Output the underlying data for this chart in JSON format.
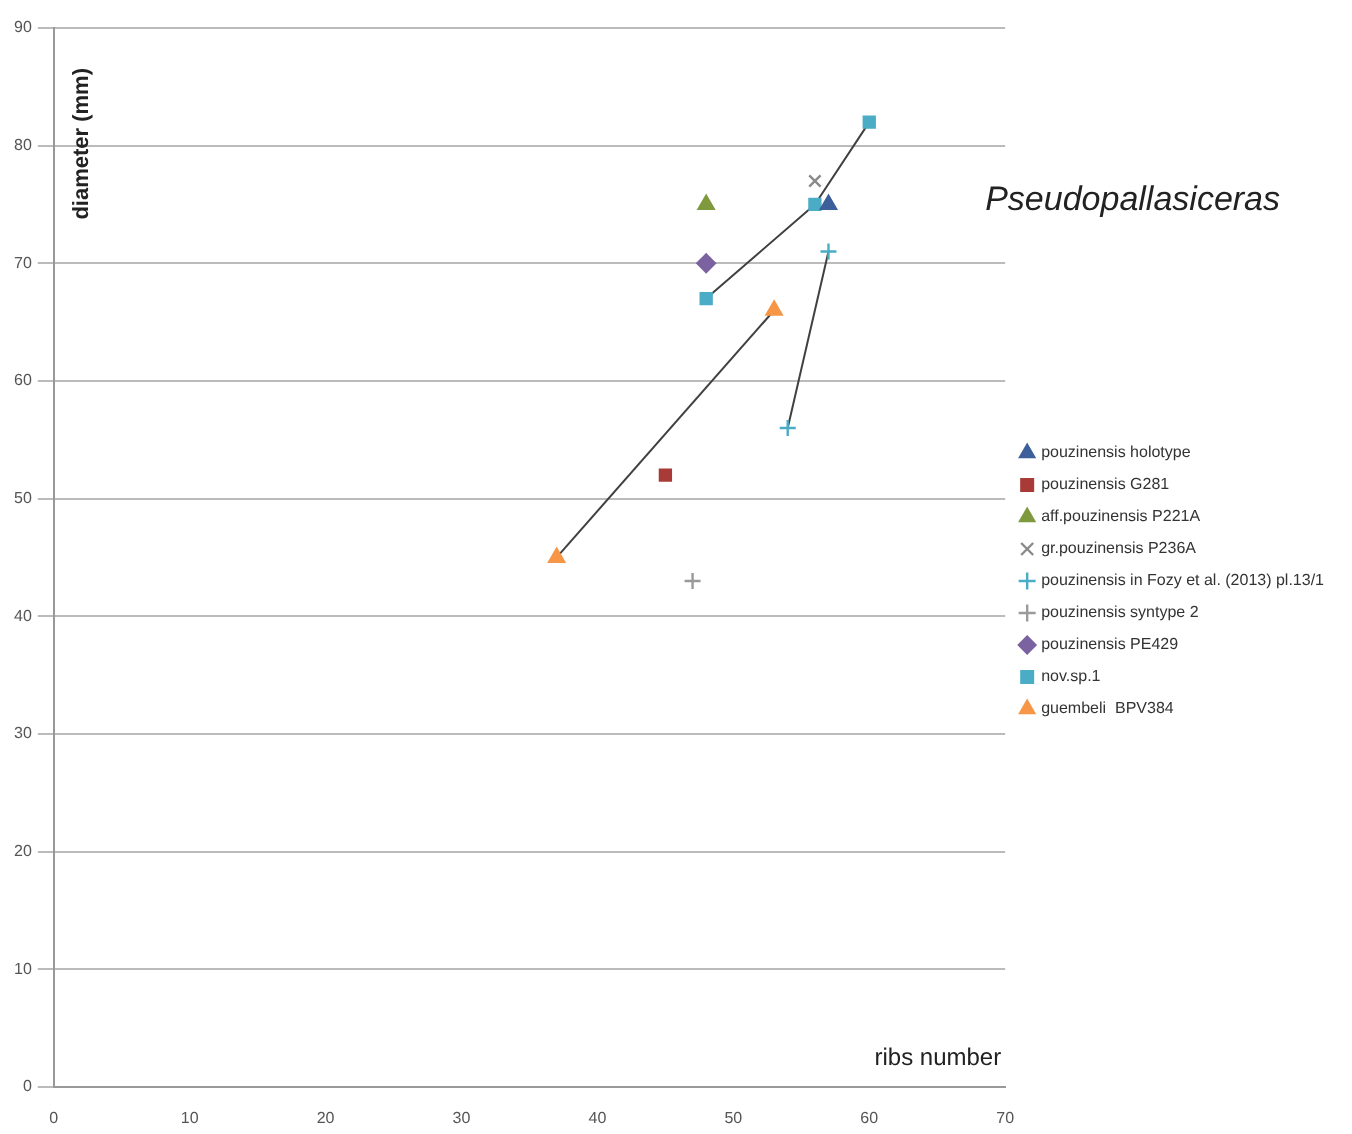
{
  "chart_data": {
    "type": "scatter",
    "title": "Pseudopallasiceras",
    "xlabel": "ribs number",
    "ylabel": "diameter (mm)",
    "xlim": [
      0,
      70
    ],
    "xticks": [
      0,
      10,
      20,
      30,
      40,
      50,
      60,
      70
    ],
    "ylim": [
      0,
      90
    ],
    "yticks": [
      0,
      10,
      20,
      30,
      40,
      50,
      60,
      70,
      80,
      90
    ],
    "grid": "y",
    "legend": "right",
    "series": [
      {
        "name": "pouzinensis holotype",
        "color": "#3d5f9a",
        "marker": "triangle",
        "x": [
          57
        ],
        "values": [
          75
        ]
      },
      {
        "name": "pouzinensis G281",
        "color": "#a83a37",
        "marker": "square",
        "x": [
          45
        ],
        "values": [
          52
        ]
      },
      {
        "name": "aff.pouzinensis P221A",
        "color": "#7f9a3e",
        "marker": "triangle",
        "x": [
          48
        ],
        "values": [
          75
        ]
      },
      {
        "name": "gr.pouzinensis P236A",
        "color": "#8a8a8a",
        "marker": "x",
        "x": [
          56
        ],
        "values": [
          77
        ]
      },
      {
        "name": "pouzinensis in Fozy et al. (2013) pl.13/1",
        "color": "#4bacc6",
        "marker": "cross",
        "type": "line",
        "x": [
          54,
          57
        ],
        "values": [
          56,
          71
        ]
      },
      {
        "name": "pouzinensis syntype 2",
        "color": "#9a9a9a",
        "marker": "cross",
        "x": [
          47
        ],
        "values": [
          43
        ]
      },
      {
        "name": "pouzinensis PE429",
        "color": "#7b62a0",
        "marker": "diamond",
        "x": [
          48
        ],
        "values": [
          70
        ]
      },
      {
        "name": "nov.sp.1",
        "color": "#4bacc6",
        "marker": "square",
        "type": "line",
        "x": [
          48,
          56,
          60
        ],
        "values": [
          67,
          75,
          82
        ]
      },
      {
        "name": "guembeli  BPV384",
        "color": "#f79646",
        "marker": "triangle",
        "type": "line",
        "x": [
          37,
          53
        ],
        "values": [
          45,
          66
        ]
      }
    ]
  }
}
